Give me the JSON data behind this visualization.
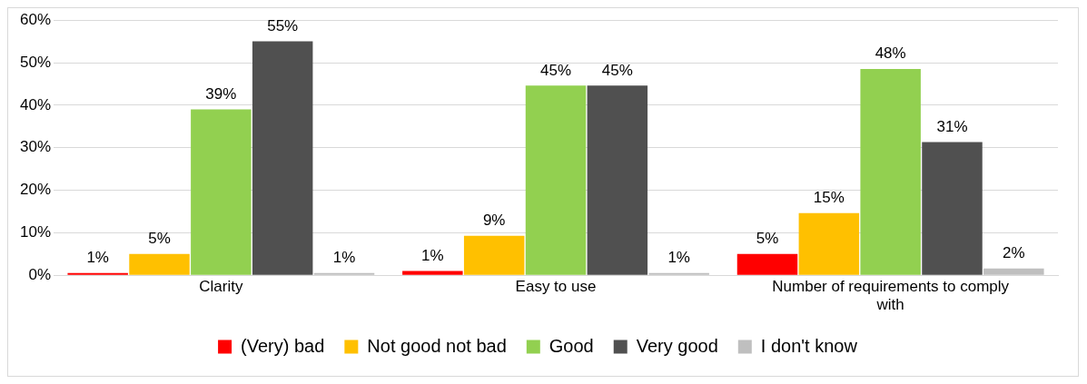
{
  "chart_data": {
    "type": "bar",
    "categories": [
      "Clarity",
      "Easy to use",
      "Number of requirements to comply with"
    ],
    "series": [
      {
        "name": "(Very) bad",
        "color": "#ff0000",
        "values": [
          0.5,
          1,
          5
        ],
        "value_labels": [
          "1%",
          "1%",
          "5%"
        ]
      },
      {
        "name": "Not good not bad",
        "color": "#ffc000",
        "values": [
          5,
          9.3,
          14.6
        ],
        "value_labels": [
          "5%",
          "9%",
          "15%"
        ]
      },
      {
        "name": "Good",
        "color": "#92d050",
        "values": [
          39,
          44.6,
          48.5
        ],
        "value_labels": [
          "39%",
          "45%",
          "48%"
        ]
      },
      {
        "name": "Very good",
        "color": "#505050",
        "values": [
          55,
          44.6,
          31.3
        ],
        "value_labels": [
          "55%",
          "45%",
          "31%"
        ]
      },
      {
        "name": "I don't know",
        "color": "#bfbfbf",
        "values": [
          0.5,
          0.5,
          1.6
        ],
        "value_labels": [
          "1%",
          "1%",
          "2%"
        ]
      }
    ],
    "ylim": [
      0,
      60
    ],
    "yticks": [
      {
        "value": 0,
        "label": "0%"
      },
      {
        "value": 10,
        "label": "10%"
      },
      {
        "value": 20,
        "label": "20%"
      },
      {
        "value": 30,
        "label": "30%"
      },
      {
        "value": 40,
        "label": "40%"
      },
      {
        "value": 50,
        "label": "50%"
      },
      {
        "value": 60,
        "label": "60%"
      }
    ],
    "grid": "y",
    "legend": "bottom"
  }
}
